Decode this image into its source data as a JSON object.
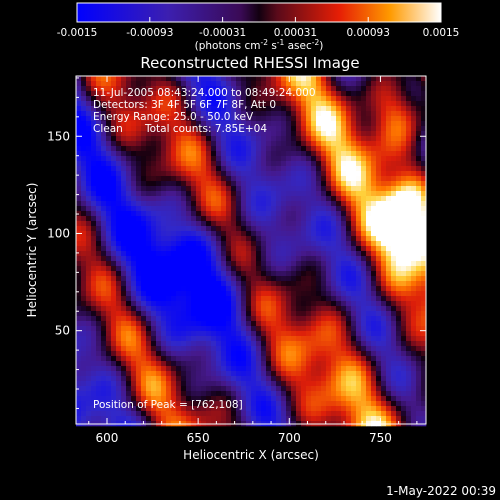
{
  "chart_data": {
    "type": "heatmap",
    "title": "Reconstructed RHESSI Image",
    "xlabel": "Heliocentric X (arcsec)",
    "ylabel": "Heliocentric Y (arcsec)",
    "xlim": [
      583,
      775
    ],
    "ylim": [
      2,
      181
    ],
    "x_ticks": [
      "600",
      "650",
      "700",
      "750"
    ],
    "y_ticks": [
      "50",
      "100",
      "150"
    ],
    "colorbar": {
      "min": -0.0015,
      "max": 0.0015,
      "tick_labels": [
        "-0.0015",
        "-0.00093",
        "-0.00031",
        "0.00031",
        "0.00093",
        "0.0015"
      ],
      "units_prefix": "(photons cm",
      "units_exp1": "-2",
      "units_mid": " s",
      "units_exp2": "-1",
      "units_mid2": " asec",
      "units_exp3": "-2",
      "units_suffix": ")"
    },
    "annotations": {
      "time_range": "11-Jul-2005 08:43:24.000 to 08:49:24.000",
      "detectors": "Detectors: 3F 4F 5F 6F 7F 8F, Att 0",
      "energy": "Energy Range: 25.0 - 50.0 keV",
      "method": "Clean",
      "counts": "Total counts: 7.85E+04",
      "peak": "Position of Peak = [762,108]"
    },
    "peak": [
      762,
      108
    ],
    "grid": false
  },
  "footer_timestamp": "1-May-2022 00:39"
}
